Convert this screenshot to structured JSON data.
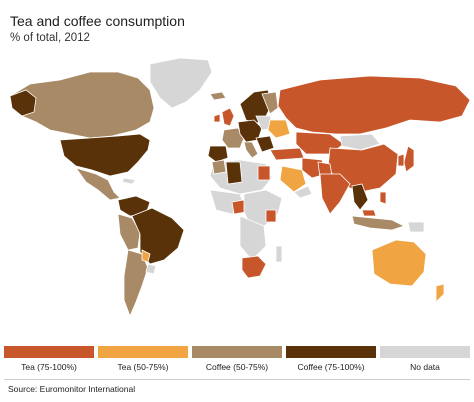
{
  "header": {
    "title": "Tea and coffee consumption",
    "subtitle": "% of total, 2012"
  },
  "legend": [
    {
      "label": "Tea (75-100%)",
      "color": "#c8562b"
    },
    {
      "label": "Tea (50-75%)",
      "color": "#f0a542"
    },
    {
      "label": "Coffee (50-75%)",
      "color": "#a98a67"
    },
    {
      "label": "Coffee (75-100%)",
      "color": "#5a3209"
    },
    {
      "label": "No data",
      "color": "#d6d6d6"
    }
  ],
  "footer": {
    "source": "Source: Euromonitor International"
  },
  "colors": {
    "tea_high": "#c8562b",
    "tea_mid": "#f0a542",
    "coffee_mid": "#a98a67",
    "coffee_high": "#5a3209",
    "no_data": "#d6d6d6",
    "border": "#ffffff"
  }
}
